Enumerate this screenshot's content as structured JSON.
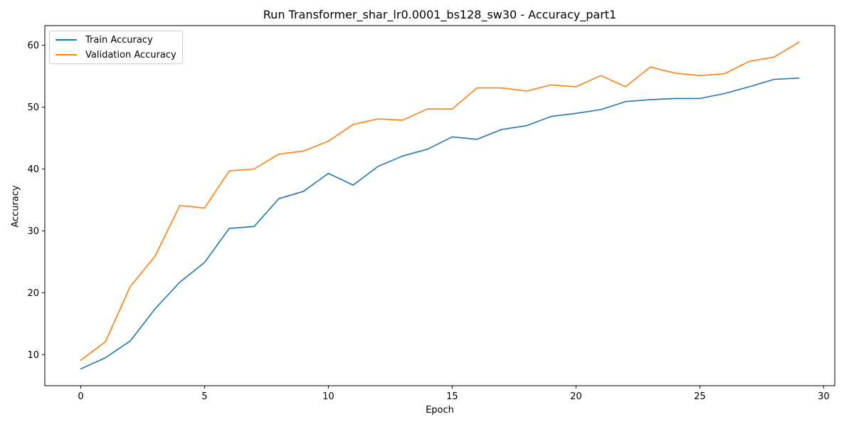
{
  "chart_data": {
    "type": "line",
    "title": "Run Transformer_shar_lr0.0001_bs128_sw30 - Accuracy_part1",
    "xlabel": "Epoch",
    "ylabel": "Accuracy",
    "xlim": [
      -1.45,
      30.45
    ],
    "ylim": [
      4.97,
      63.18
    ],
    "xticks": [
      0,
      5,
      10,
      15,
      20,
      25,
      30
    ],
    "yticks": [
      10,
      20,
      30,
      40,
      50,
      60
    ],
    "grid": false,
    "legend_position": "upper-left",
    "x": [
      0,
      1,
      2,
      3,
      4,
      5,
      6,
      7,
      8,
      9,
      10,
      11,
      12,
      13,
      14,
      15,
      16,
      17,
      18,
      19,
      20,
      21,
      22,
      23,
      24,
      25,
      26,
      27,
      28,
      29
    ],
    "series": [
      {
        "name": "Train Accuracy",
        "color": "#1f77b4",
        "values": [
          7.7,
          9.5,
          12.2,
          17.4,
          21.7,
          24.9,
          30.4,
          30.7,
          35.2,
          36.4,
          39.3,
          37.4,
          40.4,
          42.1,
          43.2,
          45.2,
          44.8,
          46.4,
          47.0,
          48.5,
          49.0,
          49.6,
          50.9,
          51.2,
          51.4,
          51.4,
          52.2,
          53.3,
          54.5,
          54.7
        ]
      },
      {
        "name": "Validation Accuracy",
        "color": "#ff7f0e",
        "values": [
          9.1,
          12.1,
          21.0,
          25.9,
          34.1,
          33.7,
          39.7,
          40.0,
          42.4,
          42.9,
          44.5,
          47.2,
          48.1,
          47.9,
          49.7,
          49.7,
          53.1,
          53.1,
          52.6,
          53.6,
          53.3,
          55.1,
          53.3,
          56.5,
          55.5,
          55.1,
          55.4,
          57.4,
          58.1,
          60.5
        ]
      }
    ]
  }
}
